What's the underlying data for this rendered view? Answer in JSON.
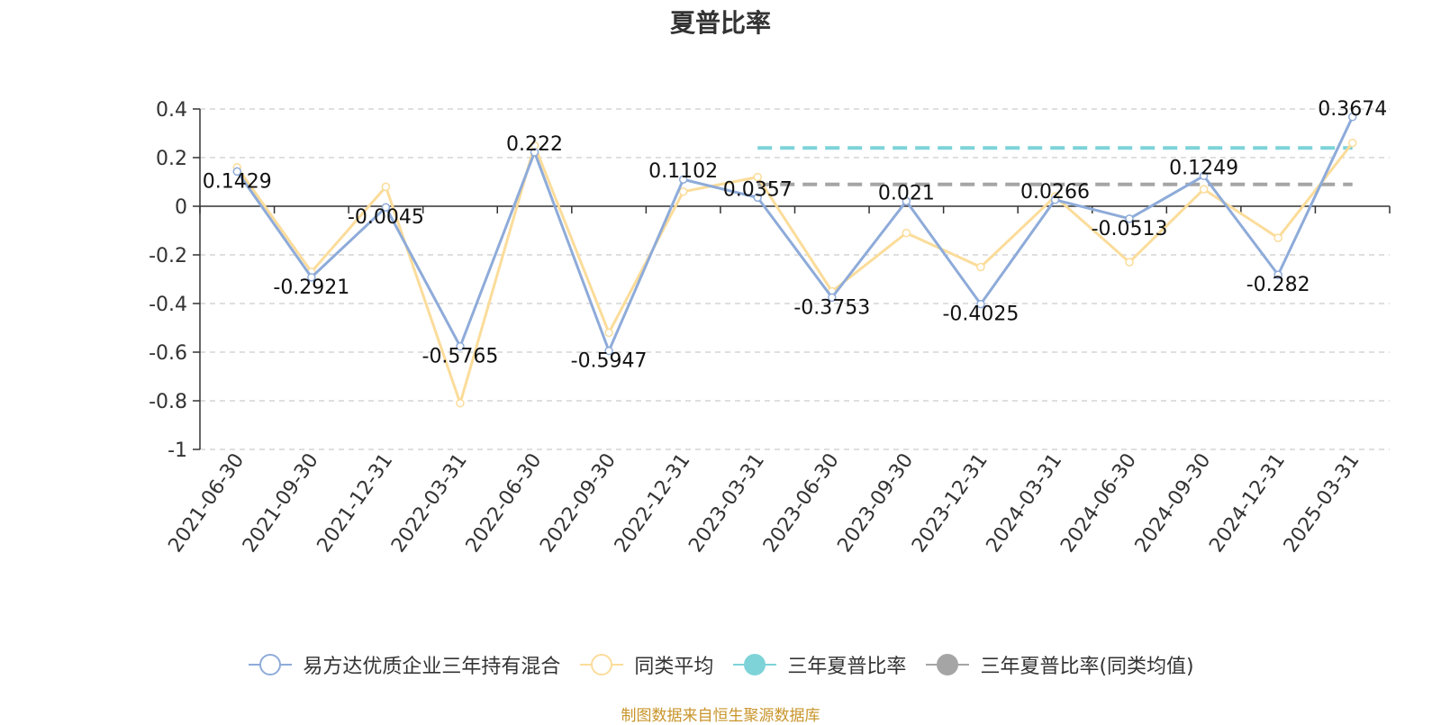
{
  "chart_data": {
    "type": "line",
    "title": "夏普比率",
    "categories": [
      "2021-06-30",
      "2021-09-30",
      "2021-12-31",
      "2022-03-31",
      "2022-06-30",
      "2022-09-30",
      "2022-12-31",
      "2023-03-31",
      "2023-06-30",
      "2023-09-30",
      "2023-12-31",
      "2024-03-31",
      "2024-06-30",
      "2024-09-30",
      "2024-12-31",
      "2025-03-31"
    ],
    "y_ticks": [
      "0.4",
      "0.2",
      "0",
      "-0.2",
      "-0.4",
      "-0.6",
      "-0.8",
      "-1"
    ],
    "ylim": [
      -1,
      0.4
    ],
    "grid": true,
    "legend_position": "bottom",
    "series": [
      {
        "name": "易方达优质企业三年持有混合",
        "color": "#8eabd9",
        "values": [
          0.1429,
          -0.2921,
          -0.0045,
          -0.5765,
          0.222,
          -0.5947,
          0.1102,
          0.0357,
          -0.3753,
          0.021,
          -0.4025,
          0.0266,
          -0.0513,
          0.1249,
          -0.282,
          0.3674
        ],
        "labels": [
          "0.1429",
          "-0.2921",
          "-0.0045",
          "-0.5765",
          "0.222",
          "-0.5947",
          "0.1102",
          "0.0357",
          "-0.3753",
          "0.021",
          "-0.4025",
          "0.0266",
          "-0.0513",
          "0.1249",
          "-0.282",
          "0.3674"
        ]
      },
      {
        "name": "同类平均",
        "color": "#fbdc9a",
        "values": [
          0.16,
          -0.27,
          0.08,
          -0.81,
          0.25,
          -0.52,
          0.06,
          0.12,
          -0.35,
          -0.11,
          -0.25,
          0.04,
          -0.23,
          0.07,
          -0.13,
          0.26
        ]
      }
    ],
    "reference_lines": [
      {
        "name": "三年夏普比率",
        "color": "#7dd3d8",
        "value": 0.24,
        "from_index": 7,
        "to_index": 15
      },
      {
        "name": "三年夏普比率(同类均值)",
        "color": "#a5a5a5",
        "value": 0.09,
        "from_index": 7,
        "to_index": 15
      }
    ]
  },
  "footer": {
    "source": "制图数据来自恒生聚源数据库"
  }
}
